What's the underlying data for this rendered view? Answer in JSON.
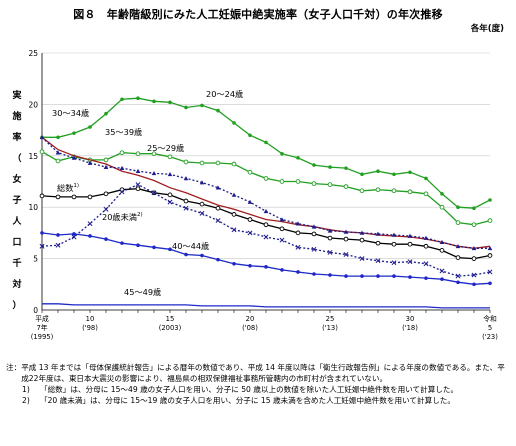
{
  "title": "図８　年齢階級別にみた人工妊娠中絶実施率（女子人口千対）の年次推移",
  "unit_label": "各年(度)",
  "y_axis_label": "実施率（女子人口千対）",
  "chart_data": {
    "type": "line",
    "x": [
      1995,
      1996,
      1997,
      1998,
      1999,
      2000,
      2001,
      2002,
      2003,
      2004,
      2005,
      2006,
      2007,
      2008,
      2009,
      2010,
      2011,
      2012,
      2013,
      2014,
      2015,
      2016,
      2017,
      2018,
      2019,
      2020,
      2021,
      2022,
      2023
    ],
    "ylim": [
      0,
      25
    ],
    "yticks": [
      0,
      5,
      10,
      15,
      20,
      25
    ],
    "xticks": [
      {
        "x": 1995,
        "lines": [
          "平成",
          "7年",
          "(1995)"
        ]
      },
      {
        "x": 1998,
        "lines": [
          "10",
          "('98)"
        ]
      },
      {
        "x": 2003,
        "lines": [
          "15",
          "(2003)"
        ]
      },
      {
        "x": 2008,
        "lines": [
          "20",
          "('08)"
        ]
      },
      {
        "x": 2013,
        "lines": [
          "25",
          "('13)"
        ]
      },
      {
        "x": 2018,
        "lines": [
          "30",
          "('18)"
        ]
      },
      {
        "x": 2023,
        "lines": [
          "令和",
          "5",
          "('23)"
        ]
      }
    ],
    "series": [
      {
        "name": "20～24歳",
        "color": "#22a022",
        "marker": "circle-filled",
        "dash": "",
        "values": [
          16.8,
          16.8,
          17.2,
          17.8,
          19.1,
          20.5,
          20.6,
          20.3,
          20.2,
          19.7,
          19.9,
          19.4,
          18.2,
          17.0,
          16.3,
          15.2,
          14.8,
          14.1,
          13.9,
          13.8,
          13.2,
          13.5,
          13.2,
          13.4,
          12.8,
          11.3,
          10.0,
          9.9,
          10.7
        ]
      },
      {
        "name": "25～29歳",
        "color": "#22a022",
        "marker": "circle-open",
        "dash": "",
        "values": [
          15.4,
          14.5,
          14.9,
          14.6,
          14.6,
          15.3,
          15.2,
          15.2,
          14.9,
          14.4,
          14.3,
          14.3,
          14.2,
          13.4,
          12.8,
          12.5,
          12.5,
          12.3,
          12.2,
          12.0,
          11.6,
          11.7,
          11.6,
          11.5,
          11.3,
          10.0,
          8.5,
          8.3,
          8.7
        ]
      },
      {
        "name": "30～34歳",
        "color": "#a01e1e",
        "marker": "none",
        "dash": "",
        "values": [
          16.8,
          15.6,
          15.0,
          14.6,
          14.2,
          13.5,
          13.1,
          12.6,
          11.9,
          11.4,
          10.8,
          10.2,
          9.8,
          9.3,
          8.8,
          8.6,
          8.3,
          8.1,
          7.8,
          7.6,
          7.5,
          7.3,
          7.2,
          7.1,
          6.9,
          6.6,
          6.2,
          6.0,
          6.2
        ]
      },
      {
        "name": "35～39歳",
        "color": "#1c1c8c",
        "marker": "triangle",
        "dash": "2,2",
        "values": [
          16.8,
          15.3,
          14.8,
          14.3,
          13.9,
          13.8,
          13.5,
          13.3,
          13.2,
          12.8,
          12.4,
          11.9,
          11.2,
          10.5,
          9.6,
          8.8,
          8.4,
          8.1,
          7.7,
          7.6,
          7.5,
          7.4,
          7.3,
          7.2,
          7.0,
          6.6,
          6.2,
          6.0,
          6.0
        ]
      },
      {
        "name": "総数",
        "color": "#000000",
        "marker": "circle-open",
        "dash": "",
        "values": [
          11.1,
          11.0,
          11.0,
          11.0,
          11.3,
          11.7,
          11.8,
          11.4,
          11.2,
          10.6,
          10.3,
          9.9,
          9.3,
          8.8,
          8.3,
          7.9,
          7.5,
          7.4,
          7.0,
          6.9,
          6.8,
          6.5,
          6.4,
          6.4,
          6.2,
          5.8,
          5.1,
          5.0,
          5.3
        ]
      },
      {
        "name": "20歳未満",
        "color": "#1c1c8c",
        "marker": "x",
        "dash": "2,2",
        "values": [
          6.2,
          6.3,
          7.1,
          8.4,
          9.8,
          11.5,
          12.2,
          11.4,
          10.5,
          9.9,
          9.4,
          8.7,
          7.8,
          7.5,
          7.1,
          6.8,
          6.1,
          5.9,
          5.6,
          5.4,
          5.0,
          4.8,
          4.6,
          4.7,
          4.5,
          3.8,
          3.3,
          3.4,
          3.7
        ]
      },
      {
        "name": "40～44歳",
        "color": "#1e28c8",
        "marker": "circle-filled",
        "dash": "",
        "values": [
          7.5,
          7.3,
          7.4,
          7.2,
          6.9,
          6.5,
          6.3,
          6.1,
          5.9,
          5.4,
          5.3,
          4.9,
          4.5,
          4.3,
          4.2,
          3.9,
          3.7,
          3.5,
          3.4,
          3.3,
          3.3,
          3.3,
          3.3,
          3.2,
          3.1,
          3.0,
          2.7,
          2.5,
          2.6
        ]
      },
      {
        "name": "45～49歳",
        "color": "#1e28c8",
        "marker": "none",
        "dash": "",
        "values": [
          0.6,
          0.6,
          0.5,
          0.5,
          0.5,
          0.5,
          0.5,
          0.5,
          0.5,
          0.5,
          0.4,
          0.4,
          0.4,
          0.4,
          0.3,
          0.3,
          0.3,
          0.3,
          0.3,
          0.3,
          0.3,
          0.3,
          0.3,
          0.3,
          0.3,
          0.2,
          0.2,
          0.2,
          0.2
        ]
      }
    ],
    "annotations": [
      {
        "series": "20～24歳",
        "text": "20～24歳"
      },
      {
        "series": "30～34歳",
        "text": "30～34歳"
      },
      {
        "series": "35～39歳",
        "text": "35～39歳"
      },
      {
        "series": "25～29歳",
        "text": "25～29歳"
      },
      {
        "series": "総数",
        "text": "総数",
        "sup": "1)"
      },
      {
        "series": "20歳未満",
        "text": "20歳未満",
        "sup": "2)"
      },
      {
        "series": "40～44歳",
        "text": "40～44歳"
      },
      {
        "series": "45～49歳",
        "text": "45～49歳"
      }
    ]
  },
  "notes": {
    "head": "注：",
    "main": "平成 13 年までは「母体保護統計報告」による暦年の数値であり、平成 14 年度以降は「衛生行政報告例」による年度の数値である。また、平成22年度は、東日本大震災の影響により、福島県の相双保健福祉事務所管轄内の市町村が含まれていない。",
    "items": [
      {
        "mark": "1)",
        "text": "「総数」は、分母に 15～49 歳の女子人口を用い、分子に 50 歳以上の数値を除いた人工妊娠中絶件数を用いて計算した。"
      },
      {
        "mark": "2)",
        "text": "「20 歳未満」は、分母に 15～19 歳の女子人口を用い、分子に 15 歳未満を含めた人工妊娠中絶件数を用いて計算した。"
      }
    ]
  }
}
